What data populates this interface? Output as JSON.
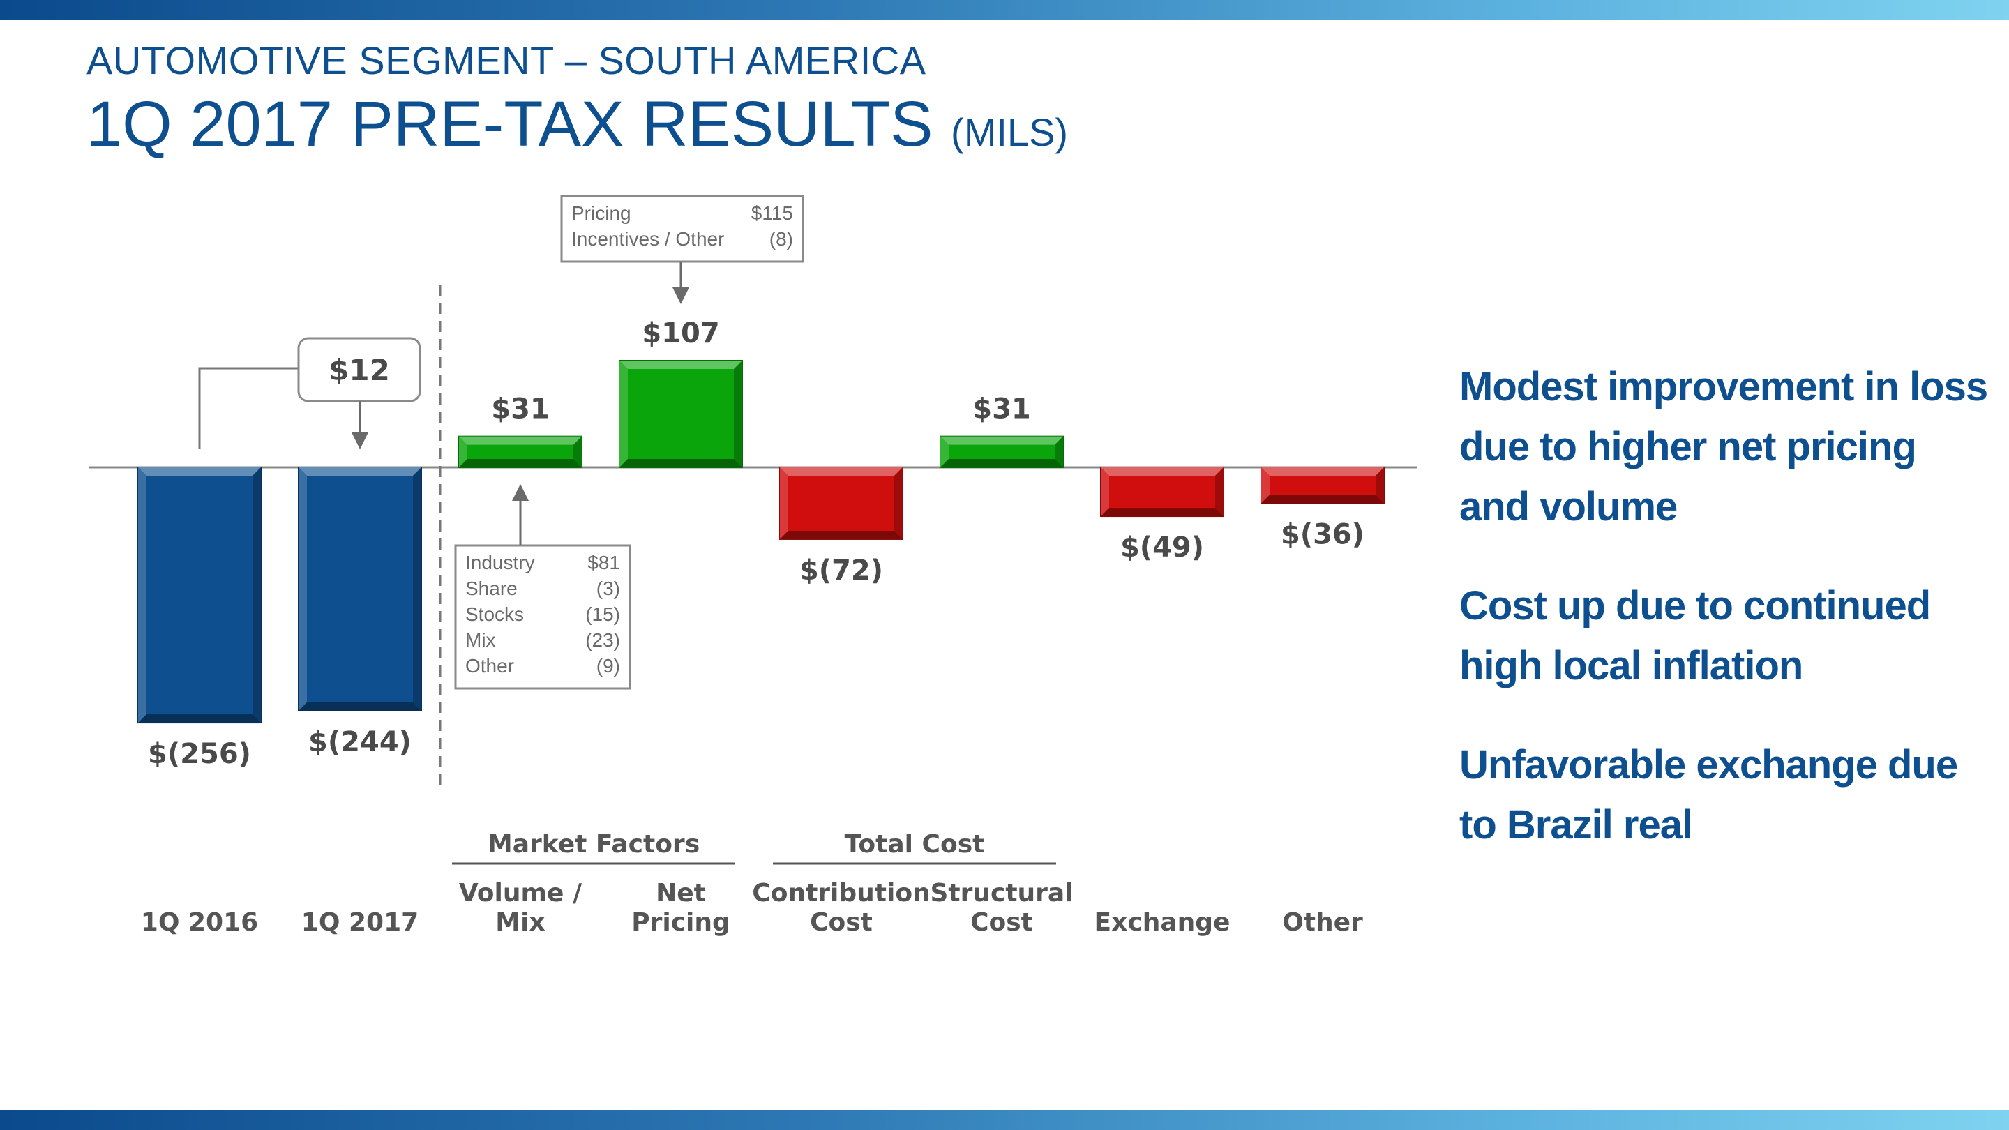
{
  "header": {
    "supertitle": "AUTOMOTIVE SEGMENT – SOUTH AMERICA",
    "title": "1Q 2017 PRE-TAX RESULTS",
    "unit": "(MILS)"
  },
  "colors": {
    "brand": "#0e4f8f",
    "base_bar": "#0e4f8f",
    "positive_bar": "#0aa50a",
    "negative_bar": "#d10e0e",
    "text_gray": "#4a4a4a"
  },
  "chart_data": {
    "type": "waterfall",
    "title": "1Q 2017 PRE-TAX RESULTS (MILS)",
    "currency": "$",
    "categories": [
      {
        "name": "1Q 2016",
        "lines": [
          "",
          "1Q 2016"
        ],
        "value": -256,
        "label": "$(256)",
        "kind": "base"
      },
      {
        "name": "1Q 2017",
        "lines": [
          "",
          "1Q 2017"
        ],
        "value": -244,
        "label": "$(244)",
        "kind": "base"
      },
      {
        "name": "Volume / Mix",
        "lines": [
          "Volume /",
          "Mix"
        ],
        "value": 31,
        "label": "$31",
        "kind": "change"
      },
      {
        "name": "Net Pricing",
        "lines": [
          "Net",
          "Pricing"
        ],
        "value": 107,
        "label": "$107",
        "kind": "change"
      },
      {
        "name": "Contribution Cost",
        "lines": [
          "Contribution",
          "Cost"
        ],
        "value": -72,
        "label": "$(72)",
        "kind": "change"
      },
      {
        "name": "Structural Cost",
        "lines": [
          "Structural",
          "Cost"
        ],
        "value": 31,
        "label": "$31",
        "kind": "change"
      },
      {
        "name": "Exchange",
        "lines": [
          "",
          "Exchange"
        ],
        "value": -49,
        "label": "$(49)",
        "kind": "change"
      },
      {
        "name": "Other",
        "lines": [
          "",
          "Other"
        ],
        "value": -36,
        "label": "$(36)",
        "kind": "change"
      }
    ],
    "improvement": {
      "value": 12,
      "label": "$12",
      "from": "1Q 2016",
      "to": "1Q 2017"
    },
    "groups": [
      {
        "label": "Market Factors",
        "categories": [
          "Volume / Mix",
          "Net Pricing"
        ]
      },
      {
        "label": "Total Cost",
        "categories": [
          "Contribution Cost",
          "Structural Cost"
        ]
      }
    ],
    "breakdowns": [
      {
        "category": "Net Pricing",
        "rows": [
          {
            "label": "Pricing",
            "value": "$115"
          },
          {
            "label": "Incentives / Other",
            "value": "(8)"
          }
        ]
      },
      {
        "category": "Volume / Mix",
        "rows": [
          {
            "label": "Industry",
            "value": "$81"
          },
          {
            "label": "Share",
            "value": "(3)"
          },
          {
            "label": "Stocks",
            "value": "(15)"
          },
          {
            "label": "Mix",
            "value": "(23)"
          },
          {
            "label": "Other",
            "value": "(9)"
          }
        ]
      }
    ]
  },
  "notes": [
    "Modest improvement in loss due to higher net pricing and volume",
    "Cost up due to continued high local inflation",
    "Unfavorable exchange due to Brazil real"
  ]
}
